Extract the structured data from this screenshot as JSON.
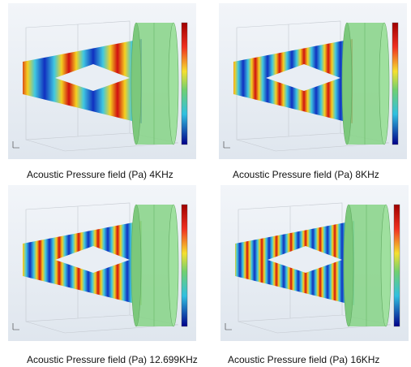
{
  "figure": {
    "panels": [
      {
        "caption": "Acoustic Pressure field (Pa) 4KHz"
      },
      {
        "caption": "Acoustic Pressure field (Pa) 8KHz"
      },
      {
        "caption": "Acoustic Pressure field (Pa) 12.699KHz"
      },
      {
        "caption": "Acoustic Pressure field (Pa) 16KHz"
      }
    ]
  }
}
